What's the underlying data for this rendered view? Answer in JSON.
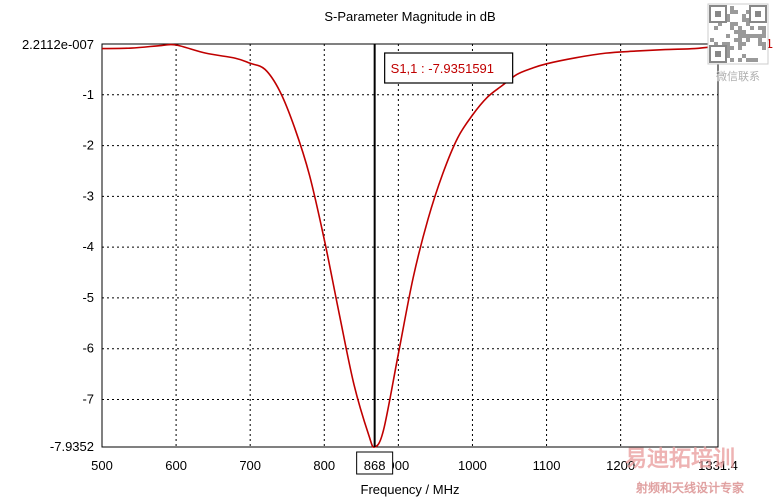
{
  "chart_data": {
    "type": "line",
    "title": "S-Parameter Magnitude in dB",
    "xlabel": "Frequency / MHz",
    "ylabel": "",
    "xlim": [
      500,
      1331.4
    ],
    "ylim": [
      -7.9352,
      2.2112e-07
    ],
    "x_ticks": [
      500,
      600,
      700,
      800,
      900,
      1000,
      1100,
      1200
    ],
    "x_tick_labels": [
      "500",
      "600",
      "700",
      "800",
      "900",
      "1000",
      "1100",
      "1200"
    ],
    "x_end_label": "1331.4",
    "y_ticks": [
      -1,
      -2,
      -3,
      -4,
      -5,
      -6,
      -7
    ],
    "y_tick_labels": [
      "-1",
      "-2",
      "-3",
      "-4",
      "-5",
      "-6",
      "-7"
    ],
    "y_max_label": "2.2112e-007",
    "y_min_label": "-7.9352",
    "grid": true,
    "series": [
      {
        "name": "S1,1",
        "color": "#c00000",
        "x": [
          500,
          540,
          580,
          600,
          640,
          680,
          700,
          720,
          740,
          760,
          780,
          800,
          820,
          840,
          860,
          868,
          880,
          900,
          920,
          940,
          960,
          980,
          1000,
          1020,
          1040,
          1060,
          1080,
          1100,
          1140,
          1180,
          1220,
          1260,
          1300,
          1331.4
        ],
        "y": [
          -0.09,
          -0.08,
          -0.03,
          -0.02,
          -0.18,
          -0.28,
          -0.38,
          -0.5,
          -0.93,
          -1.65,
          -2.58,
          -3.85,
          -5.3,
          -6.7,
          -7.7,
          -7.9352,
          -7.6,
          -6.1,
          -4.6,
          -3.45,
          -2.55,
          -1.85,
          -1.4,
          -1.05,
          -0.82,
          -0.6,
          -0.48,
          -0.39,
          -0.27,
          -0.18,
          -0.14,
          -0.11,
          -0.09,
          -0.04
        ]
      }
    ],
    "marker": {
      "x": 868,
      "x_label": "868",
      "label": "S1,1 : -7.9351591",
      "color": "#000000"
    },
    "legend_position": "top-right"
  },
  "watermark": {
    "wechat_text": "微信联系",
    "brand_text": "易迪拓培训",
    "brand_sub": "射频和天线设计专家"
  }
}
